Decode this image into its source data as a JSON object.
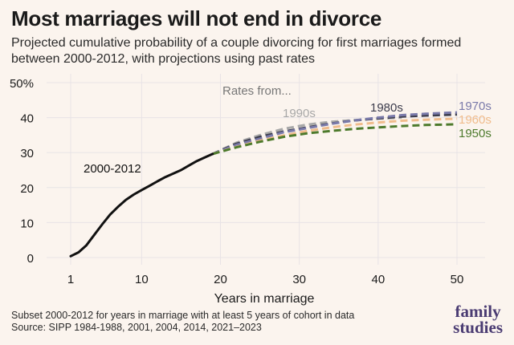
{
  "title": "Most marriages will not end in divorce",
  "subtitle": "Projected cumulative probability of a couple divorcing for first marriages formed between 2000-2012, with projections using past rates",
  "footnote_lines": [
    "Subset 2000-2012 for years in marriage with at least 5 years of cohort in data",
    "Source: SIPP 1984-1988, 2001, 2004, 2014, 2021–2023"
  ],
  "logo": {
    "line1": "family",
    "line2": "studies"
  },
  "colors": {
    "background": "#fbf4ee",
    "grid": "#e8e3e6",
    "observed": "#111111",
    "1990s": "#a8a8a8",
    "1980s": "#3d3d4d",
    "1970s": "#7a7aaa",
    "1960s": "#f0bc8c",
    "1950s": "#4d7a2c",
    "annotation": "#777777"
  },
  "chart_data": {
    "type": "line",
    "xlabel": "Years in marriage",
    "ylabel": "",
    "xlim": [
      1,
      52
    ],
    "ylim": [
      0,
      50
    ],
    "x_ticks": [
      1,
      10,
      20,
      30,
      40,
      50
    ],
    "y_ticks": [
      {
        "value": 0,
        "label": "0"
      },
      {
        "value": 10,
        "label": "10"
      },
      {
        "value": 20,
        "label": "20"
      },
      {
        "value": 30,
        "label": "30"
      },
      {
        "value": 40,
        "label": "40"
      },
      {
        "value": 50,
        "label": "50%"
      }
    ],
    "grid": true,
    "annotation": "Rates from...",
    "series": [
      {
        "name": "2000-2012",
        "style": "solid",
        "color_key": "observed",
        "x": [
          1,
          2,
          3,
          4,
          5,
          6,
          7,
          8,
          9,
          10,
          11,
          12,
          13,
          14,
          15,
          16,
          17,
          18,
          19
        ],
        "y": [
          0.4,
          1.5,
          3.5,
          6.5,
          9.5,
          12.3,
          14.5,
          16.5,
          18.0,
          19.3,
          20.5,
          21.8,
          23.0,
          24.0,
          25.0,
          26.3,
          27.6,
          28.6,
          29.6
        ]
      },
      {
        "name": "1990s",
        "style": "dashed",
        "color_key": "1990s",
        "x": [
          19,
          22,
          25,
          28,
          31,
          34,
          37,
          40,
          43
        ],
        "y": [
          29.6,
          32.8,
          35.0,
          36.8,
          38.0,
          38.8,
          39.3,
          39.7,
          40.0
        ]
      },
      {
        "name": "1980s",
        "style": "dashed",
        "color_key": "1980s",
        "x": [
          19,
          22,
          25,
          28,
          31,
          34,
          37,
          40,
          43,
          46,
          50
        ],
        "y": [
          29.6,
          32.5,
          34.5,
          36.0,
          37.2,
          38.3,
          39.2,
          39.8,
          40.3,
          40.6,
          40.9
        ]
      },
      {
        "name": "1970s",
        "style": "dashed",
        "color_key": "1970s",
        "x": [
          19,
          22,
          25,
          28,
          31,
          34,
          37,
          40,
          43,
          46,
          50
        ],
        "y": [
          29.6,
          32.2,
          34.0,
          35.8,
          37.0,
          38.2,
          39.2,
          40.0,
          40.7,
          41.1,
          41.5
        ]
      },
      {
        "name": "1960s",
        "style": "dashed",
        "color_key": "1960s",
        "x": [
          19,
          22,
          25,
          28,
          31,
          34,
          37,
          40,
          43,
          46,
          50
        ],
        "y": [
          29.6,
          31.6,
          33.4,
          34.9,
          36.2,
          37.2,
          38.0,
          38.6,
          39.1,
          39.4,
          39.7
        ]
      },
      {
        "name": "1950s",
        "style": "dashed",
        "color_key": "1950s",
        "x": [
          19,
          22,
          25,
          28,
          31,
          34,
          37,
          40,
          43,
          46,
          50
        ],
        "y": [
          29.6,
          31.5,
          33.1,
          34.5,
          35.5,
          36.2,
          36.8,
          37.2,
          37.6,
          37.9,
          38.1
        ]
      }
    ]
  }
}
